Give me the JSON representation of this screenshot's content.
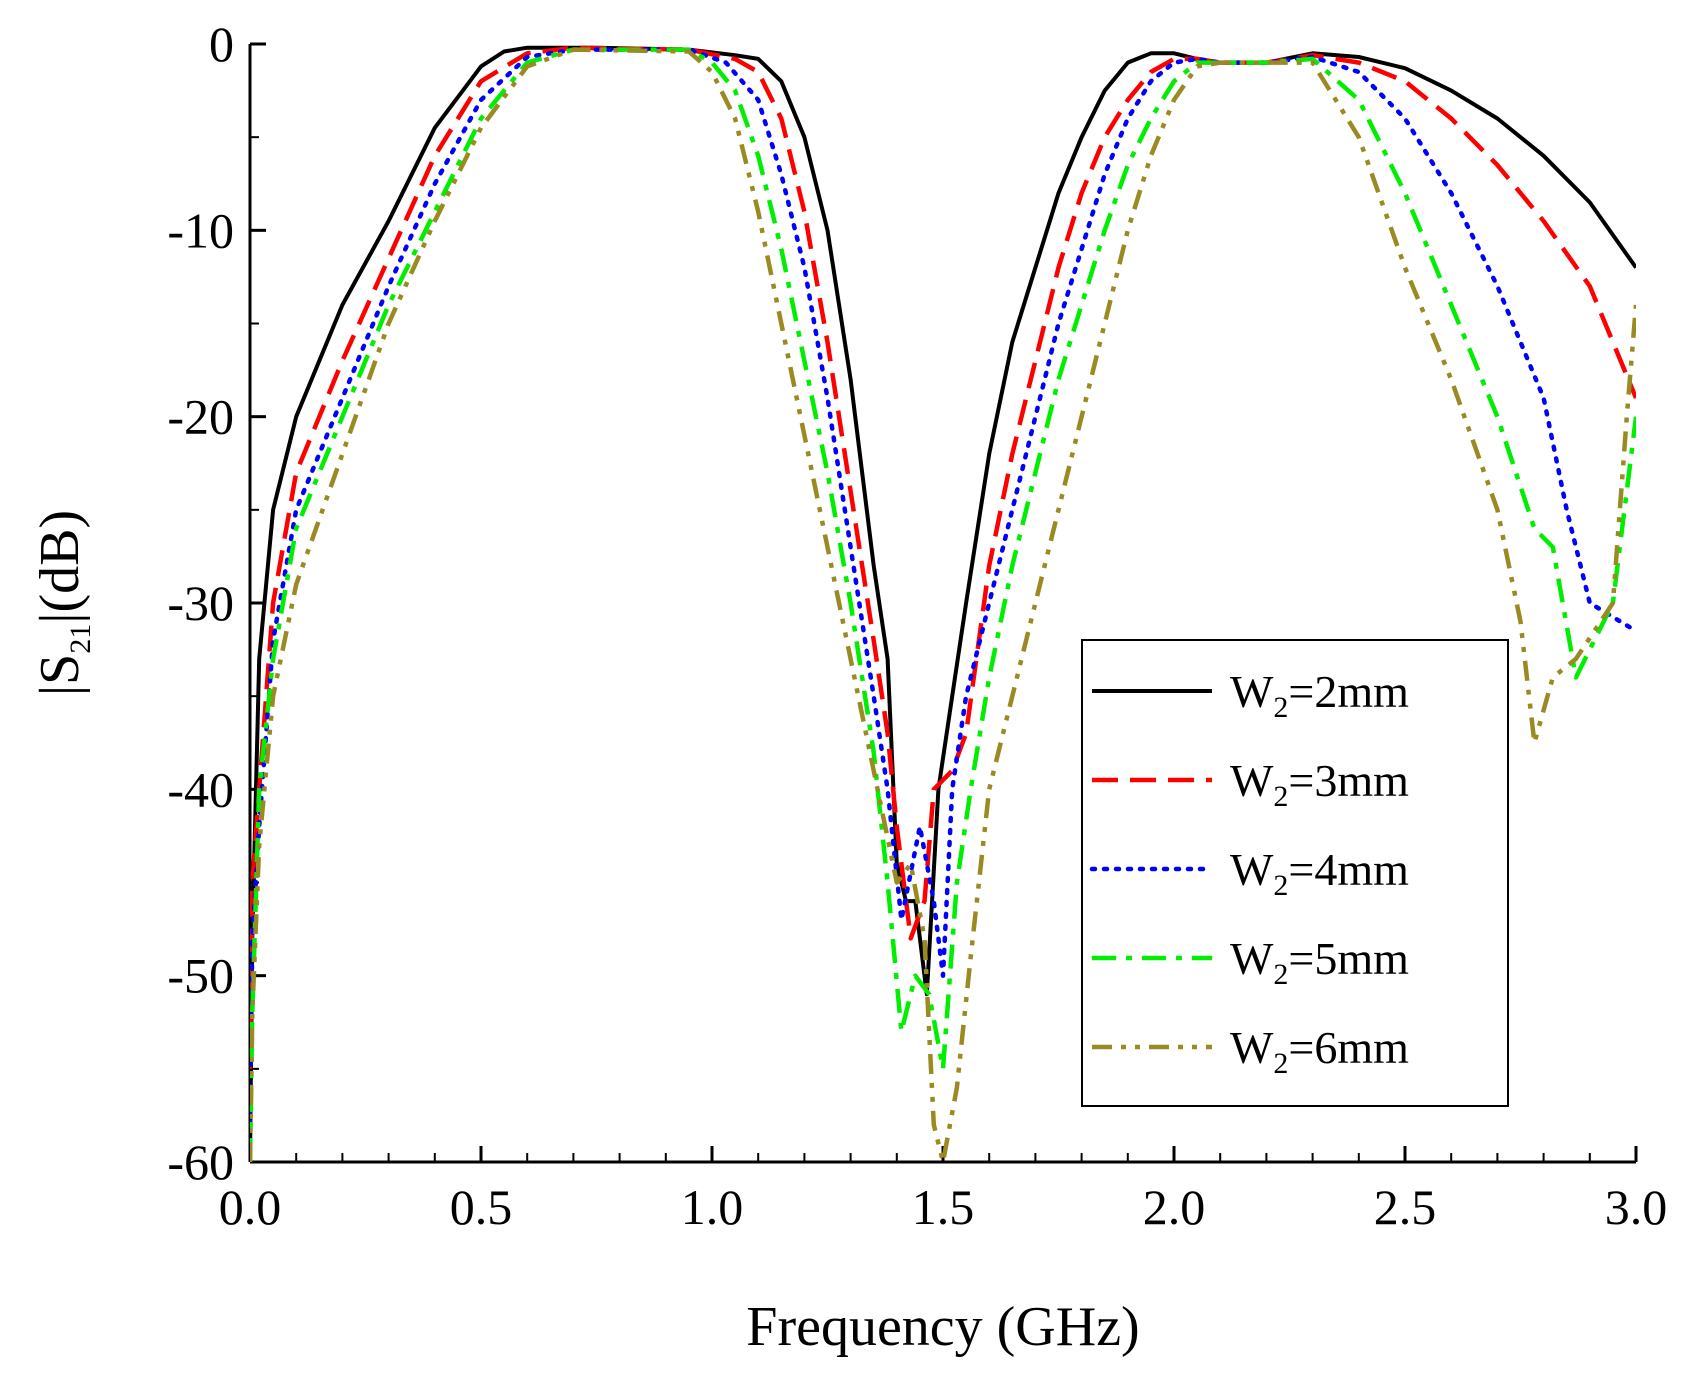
{
  "chart_data": {
    "type": "line",
    "title": "",
    "xlabel": "Frequency (GHz)",
    "ylabel": {
      "prefix": "|S",
      "sub": "21",
      "suffix": "|(dB)"
    },
    "xlim": [
      0.0,
      3.0
    ],
    "ylim": [
      -60,
      0
    ],
    "xticks": [
      "0.0",
      "0.5",
      "1.0",
      "1.5",
      "2.0",
      "2.5",
      "3.0"
    ],
    "yticks": [
      "0",
      "-10",
      "-20",
      "-30",
      "-40",
      "-50",
      "-60"
    ],
    "grid": false,
    "legend_position": "bottom-right",
    "series": [
      {
        "name": "W2=2mm",
        "legend": {
          "base": "W",
          "sub": "2",
          "rest": "=2mm"
        },
        "color": "#000000",
        "dash": "solid",
        "points": [
          [
            0.0,
            -60
          ],
          [
            0.005,
            -48
          ],
          [
            0.02,
            -33
          ],
          [
            0.05,
            -25
          ],
          [
            0.1,
            -20
          ],
          [
            0.2,
            -14
          ],
          [
            0.3,
            -9.5
          ],
          [
            0.4,
            -4.5
          ],
          [
            0.5,
            -1.2
          ],
          [
            0.55,
            -0.4
          ],
          [
            0.6,
            -0.2
          ],
          [
            0.75,
            -0.2
          ],
          [
            0.95,
            -0.3
          ],
          [
            1.05,
            -0.6
          ],
          [
            1.1,
            -0.8
          ],
          [
            1.15,
            -2
          ],
          [
            1.2,
            -5
          ],
          [
            1.25,
            -10
          ],
          [
            1.3,
            -18
          ],
          [
            1.35,
            -28
          ],
          [
            1.38,
            -33
          ],
          [
            1.4,
            -44
          ],
          [
            1.42,
            -46
          ],
          [
            1.44,
            -46
          ],
          [
            1.465,
            -51
          ],
          [
            1.49,
            -40
          ],
          [
            1.52,
            -35
          ],
          [
            1.55,
            -30
          ],
          [
            1.6,
            -22
          ],
          [
            1.65,
            -16
          ],
          [
            1.7,
            -12
          ],
          [
            1.75,
            -8
          ],
          [
            1.8,
            -5
          ],
          [
            1.85,
            -2.5
          ],
          [
            1.9,
            -1
          ],
          [
            1.95,
            -0.5
          ],
          [
            2.0,
            -0.5
          ],
          [
            2.05,
            -0.8
          ],
          [
            2.1,
            -1
          ],
          [
            2.2,
            -1
          ],
          [
            2.3,
            -0.5
          ],
          [
            2.4,
            -0.7
          ],
          [
            2.5,
            -1.3
          ],
          [
            2.6,
            -2.5
          ],
          [
            2.7,
            -4
          ],
          [
            2.8,
            -6
          ],
          [
            2.9,
            -8.5
          ],
          [
            3.0,
            -12
          ]
        ]
      },
      {
        "name": "W2=3mm",
        "legend": {
          "base": "W",
          "sub": "2",
          "rest": "=3mm"
        },
        "color": "#ff0000",
        "dash": "dashed",
        "points": [
          [
            0.0,
            -55
          ],
          [
            0.005,
            -45
          ],
          [
            0.02,
            -40
          ],
          [
            0.05,
            -30
          ],
          [
            0.1,
            -23
          ],
          [
            0.2,
            -17
          ],
          [
            0.3,
            -11.5
          ],
          [
            0.4,
            -6
          ],
          [
            0.5,
            -2
          ],
          [
            0.6,
            -0.5
          ],
          [
            0.7,
            -0.2
          ],
          [
            0.95,
            -0.3
          ],
          [
            1.05,
            -0.8
          ],
          [
            1.1,
            -1.5
          ],
          [
            1.15,
            -4
          ],
          [
            1.2,
            -9
          ],
          [
            1.25,
            -16
          ],
          [
            1.3,
            -24
          ],
          [
            1.35,
            -32
          ],
          [
            1.38,
            -37
          ],
          [
            1.4,
            -42
          ],
          [
            1.43,
            -48
          ],
          [
            1.46,
            -46
          ],
          [
            1.48,
            -40
          ],
          [
            1.52,
            -39
          ],
          [
            1.55,
            -37
          ],
          [
            1.6,
            -28
          ],
          [
            1.65,
            -22
          ],
          [
            1.7,
            -17
          ],
          [
            1.75,
            -12
          ],
          [
            1.8,
            -8
          ],
          [
            1.85,
            -5
          ],
          [
            1.9,
            -3
          ],
          [
            1.95,
            -1.5
          ],
          [
            2.0,
            -0.8
          ],
          [
            2.05,
            -0.8
          ],
          [
            2.1,
            -1
          ],
          [
            2.2,
            -1
          ],
          [
            2.3,
            -0.6
          ],
          [
            2.4,
            -1
          ],
          [
            2.5,
            -2
          ],
          [
            2.6,
            -4
          ],
          [
            2.7,
            -6.5
          ],
          [
            2.8,
            -9.5
          ],
          [
            2.9,
            -13
          ],
          [
            3.0,
            -19
          ]
        ]
      },
      {
        "name": "W2=4mm",
        "legend": {
          "base": "W",
          "sub": "2",
          "rest": "=4mm"
        },
        "color": "#0000ff",
        "dash": "dotted",
        "points": [
          [
            0.0,
            -58
          ],
          [
            0.005,
            -48
          ],
          [
            0.02,
            -42
          ],
          [
            0.05,
            -32
          ],
          [
            0.1,
            -25
          ],
          [
            0.2,
            -19
          ],
          [
            0.3,
            -13
          ],
          [
            0.4,
            -7.5
          ],
          [
            0.5,
            -3
          ],
          [
            0.6,
            -0.7
          ],
          [
            0.7,
            -0.3
          ],
          [
            0.95,
            -0.3
          ],
          [
            1.03,
            -1
          ],
          [
            1.1,
            -3
          ],
          [
            1.15,
            -7
          ],
          [
            1.2,
            -12
          ],
          [
            1.25,
            -19
          ],
          [
            1.3,
            -27
          ],
          [
            1.35,
            -35
          ],
          [
            1.38,
            -40
          ],
          [
            1.41,
            -47
          ],
          [
            1.45,
            -42
          ],
          [
            1.48,
            -46
          ],
          [
            1.5,
            -50
          ],
          [
            1.52,
            -40
          ],
          [
            1.55,
            -35
          ],
          [
            1.6,
            -30
          ],
          [
            1.65,
            -25
          ],
          [
            1.7,
            -20
          ],
          [
            1.75,
            -15
          ],
          [
            1.8,
            -11
          ],
          [
            1.85,
            -7
          ],
          [
            1.9,
            -4
          ],
          [
            1.95,
            -2
          ],
          [
            2.0,
            -1
          ],
          [
            2.05,
            -0.8
          ],
          [
            2.1,
            -1
          ],
          [
            2.2,
            -1
          ],
          [
            2.3,
            -0.7
          ],
          [
            2.4,
            -1.5
          ],
          [
            2.5,
            -4
          ],
          [
            2.6,
            -8
          ],
          [
            2.7,
            -13
          ],
          [
            2.8,
            -19
          ],
          [
            2.85,
            -25
          ],
          [
            2.9,
            -30
          ],
          [
            3.0,
            -31.5
          ]
        ]
      },
      {
        "name": "W2=5mm",
        "legend": {
          "base": "W",
          "sub": "2",
          "rest": "=5mm"
        },
        "color": "#00ee00",
        "dash": "dashdot",
        "points": [
          [
            0.0,
            -60
          ],
          [
            0.005,
            -52
          ],
          [
            0.02,
            -40
          ],
          [
            0.05,
            -33
          ],
          [
            0.1,
            -26
          ],
          [
            0.2,
            -20
          ],
          [
            0.3,
            -14
          ],
          [
            0.4,
            -9
          ],
          [
            0.5,
            -4
          ],
          [
            0.6,
            -1
          ],
          [
            0.7,
            -0.3
          ],
          [
            0.95,
            -0.3
          ],
          [
            1.0,
            -1
          ],
          [
            1.05,
            -2.5
          ],
          [
            1.1,
            -6
          ],
          [
            1.15,
            -11
          ],
          [
            1.2,
            -17
          ],
          [
            1.25,
            -23
          ],
          [
            1.3,
            -30
          ],
          [
            1.35,
            -38
          ],
          [
            1.38,
            -45
          ],
          [
            1.41,
            -53
          ],
          [
            1.44,
            -50
          ],
          [
            1.47,
            -51
          ],
          [
            1.5,
            -55
          ],
          [
            1.53,
            -45
          ],
          [
            1.56,
            -40
          ],
          [
            1.6,
            -34
          ],
          [
            1.65,
            -28
          ],
          [
            1.7,
            -23
          ],
          [
            1.75,
            -18
          ],
          [
            1.8,
            -14
          ],
          [
            1.85,
            -10
          ],
          [
            1.9,
            -6.5
          ],
          [
            1.95,
            -4
          ],
          [
            2.0,
            -2
          ],
          [
            2.05,
            -1
          ],
          [
            2.1,
            -1
          ],
          [
            2.2,
            -1
          ],
          [
            2.3,
            -0.8
          ],
          [
            2.4,
            -3
          ],
          [
            2.5,
            -8
          ],
          [
            2.6,
            -14
          ],
          [
            2.7,
            -20
          ],
          [
            2.78,
            -26
          ],
          [
            2.82,
            -27
          ],
          [
            2.87,
            -34
          ],
          [
            2.95,
            -30
          ],
          [
            3.0,
            -20
          ]
        ]
      },
      {
        "name": "W2=6mm",
        "legend": {
          "base": "W",
          "sub": "2",
          "rest": "=6mm"
        },
        "color": "#9a8a22",
        "dash": "dashdotdot",
        "points": [
          [
            0.0,
            -60
          ],
          [
            0.005,
            -52
          ],
          [
            0.02,
            -43
          ],
          [
            0.05,
            -35
          ],
          [
            0.1,
            -29
          ],
          [
            0.2,
            -22
          ],
          [
            0.3,
            -15
          ],
          [
            0.4,
            -9.5
          ],
          [
            0.5,
            -4.5
          ],
          [
            0.6,
            -1.2
          ],
          [
            0.7,
            -0.3
          ],
          [
            0.95,
            -0.4
          ],
          [
            1.0,
            -1.5
          ],
          [
            1.05,
            -4
          ],
          [
            1.1,
            -9
          ],
          [
            1.15,
            -15
          ],
          [
            1.2,
            -21
          ],
          [
            1.25,
            -27
          ],
          [
            1.3,
            -33
          ],
          [
            1.35,
            -39
          ],
          [
            1.4,
            -45
          ],
          [
            1.43,
            -44
          ],
          [
            1.46,
            -48
          ],
          [
            1.48,
            -58
          ],
          [
            1.5,
            -60
          ],
          [
            1.53,
            -56
          ],
          [
            1.56,
            -49
          ],
          [
            1.6,
            -40
          ],
          [
            1.65,
            -35
          ],
          [
            1.7,
            -30
          ],
          [
            1.75,
            -25
          ],
          [
            1.8,
            -20
          ],
          [
            1.85,
            -15
          ],
          [
            1.9,
            -10
          ],
          [
            1.95,
            -6
          ],
          [
            2.0,
            -3
          ],
          [
            2.05,
            -1.2
          ],
          [
            2.1,
            -1
          ],
          [
            2.2,
            -1
          ],
          [
            2.3,
            -1
          ],
          [
            2.4,
            -5
          ],
          [
            2.5,
            -12
          ],
          [
            2.6,
            -18
          ],
          [
            2.7,
            -25
          ],
          [
            2.75,
            -31
          ],
          [
            2.78,
            -37.5
          ],
          [
            2.82,
            -34
          ],
          [
            2.87,
            -33
          ],
          [
            2.95,
            -30
          ],
          [
            2.98,
            -20
          ],
          [
            3.0,
            -14
          ]
        ]
      }
    ]
  }
}
